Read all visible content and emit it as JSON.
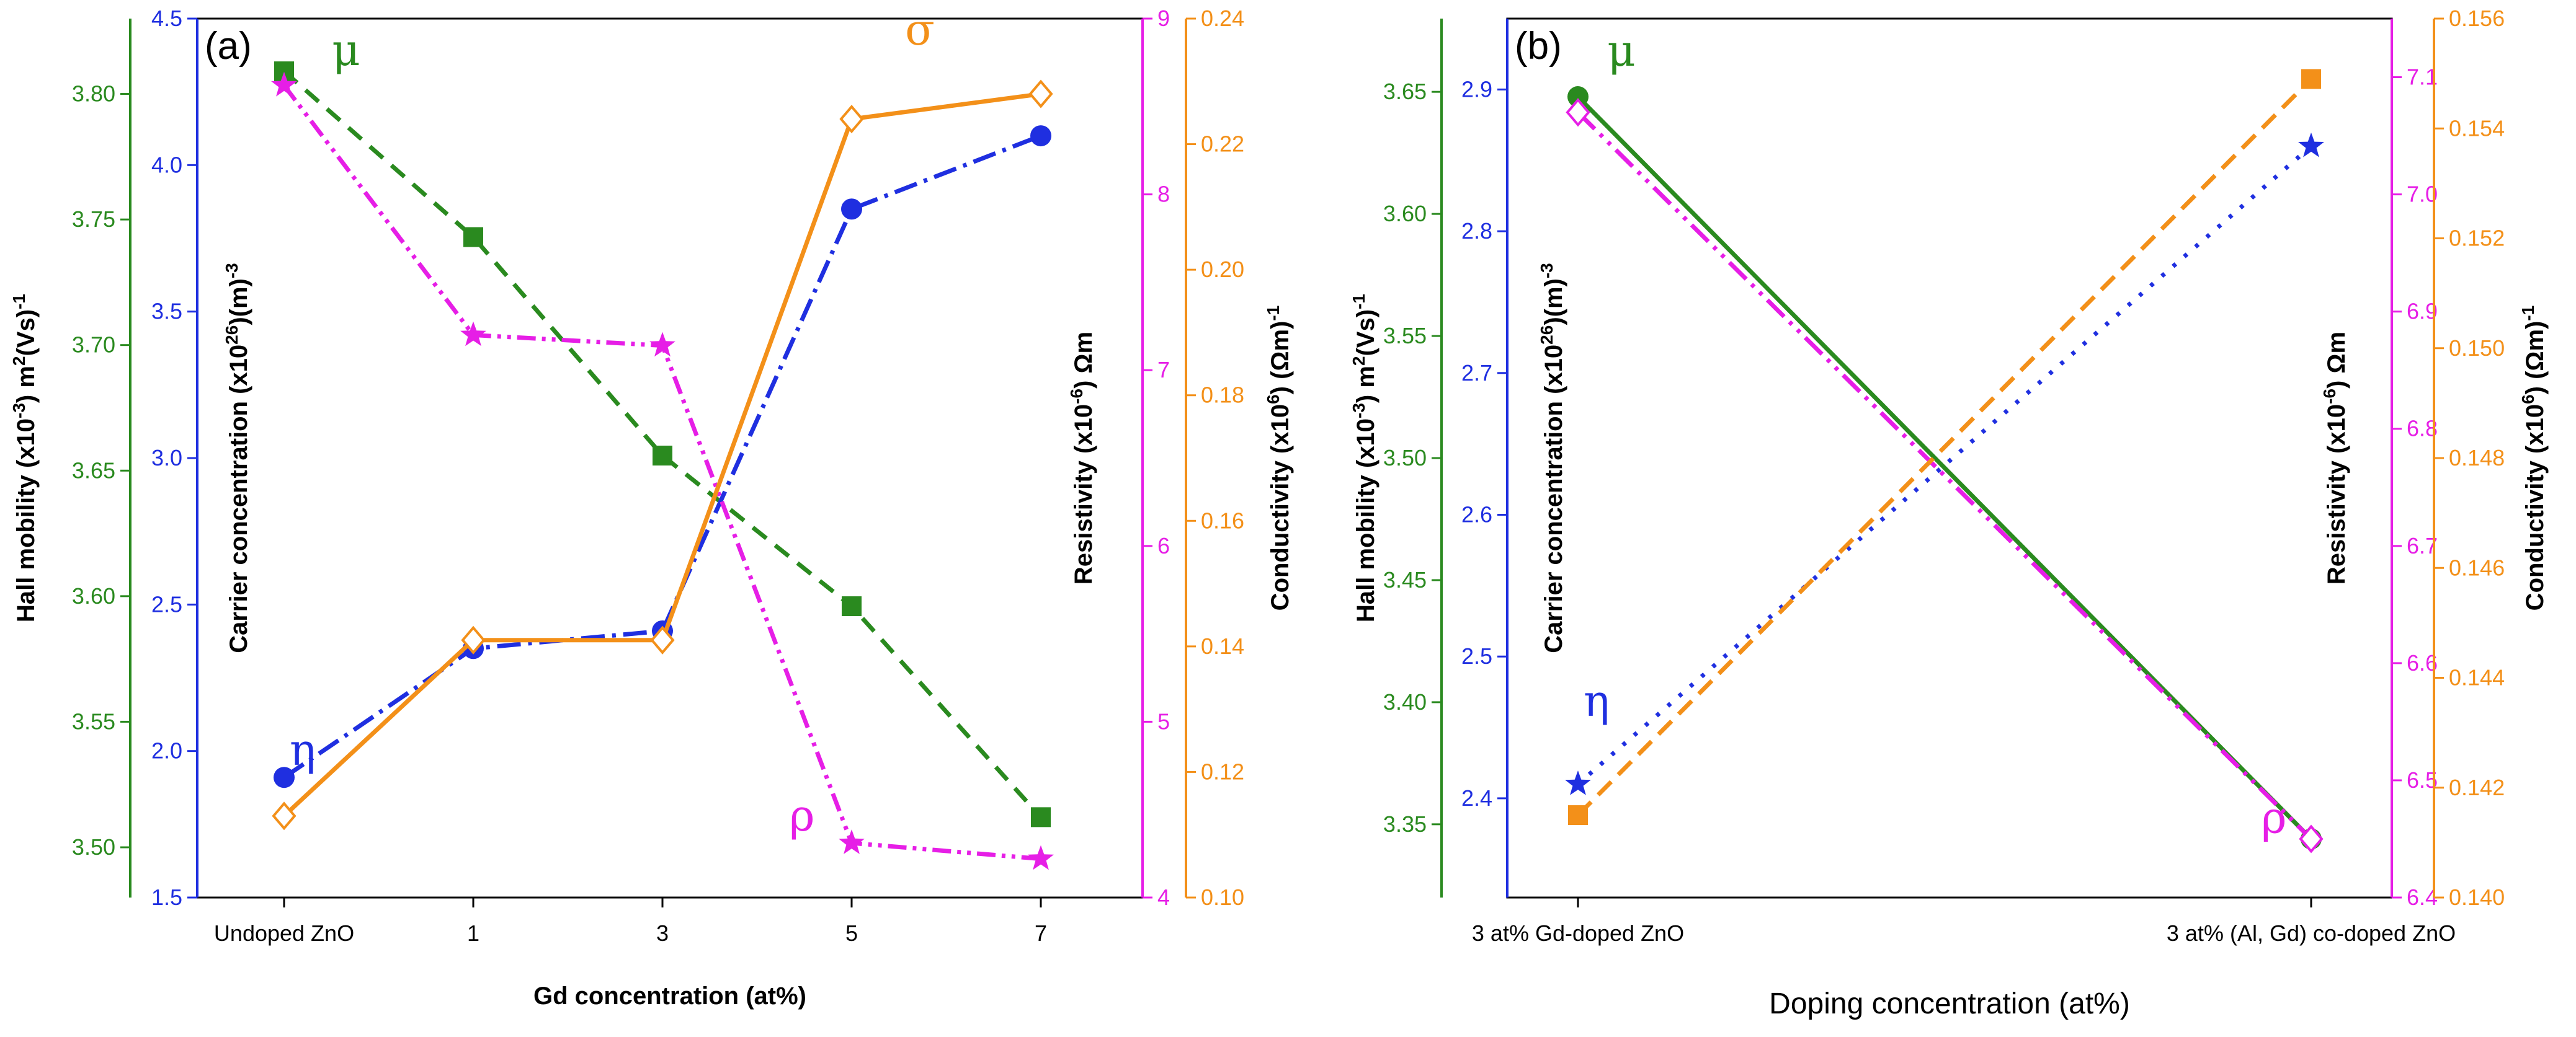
{
  "chart_data": [
    {
      "type": "line",
      "panel_label": "(a)",
      "xlabel": "Gd concentration (at%)",
      "categories": [
        "Undoped ZnO",
        "1",
        "3",
        "5",
        "7"
      ],
      "axes": {
        "mobility": {
          "label": "Hall mobility (x10^-3) m^2(Vs)^-1",
          "ticks": [
            "3.50",
            "3.55",
            "3.60",
            "3.65",
            "3.70",
            "3.75",
            "3.80"
          ],
          "range": [
            3.48,
            3.83
          ],
          "color": "#2a8a1f"
        },
        "carrier": {
          "label": "Carrier concentration (x10^26)(m)^-3",
          "ticks": [
            "1.5",
            "2.0",
            "2.5",
            "3.0",
            "3.5",
            "4.0",
            "4.5"
          ],
          "range": [
            1.5,
            4.5
          ],
          "color": "#1f2fe0"
        },
        "resistivity": {
          "label": "Resistivity (x10^-6) Ωm",
          "ticks": [
            "4",
            "5",
            "6",
            "7",
            "8",
            "9"
          ],
          "range": [
            4,
            9
          ],
          "color": "#e61ee6"
        },
        "conductivity": {
          "label": "Conductivity (x10^6) (Ωm)^-1",
          "ticks": [
            "0.10",
            "0.12",
            "0.14",
            "0.16",
            "0.18",
            "0.20",
            "0.22",
            "0.24"
          ],
          "range": [
            0.1,
            0.24
          ],
          "color": "#f39019"
        }
      },
      "series": [
        {
          "name": "μ",
          "axis": "mobility",
          "values": [
            3.809,
            3.743,
            3.656,
            3.596,
            3.512
          ],
          "color": "#2a8a1f",
          "marker": "square",
          "dash": "28,18",
          "label_point": 0
        },
        {
          "name": "η",
          "axis": "carrier",
          "values": [
            1.91,
            2.35,
            2.41,
            3.85,
            4.1
          ],
          "color": "#1f2fe0",
          "marker": "circle",
          "dash": "38,12,6,12",
          "label_point": 0
        },
        {
          "name": "ρ",
          "axis": "resistivity",
          "values": [
            8.62,
            7.2,
            7.14,
            4.31,
            4.22
          ],
          "color": "#e61ee6",
          "marker": "star",
          "dash": "30,10,6,10,6,10",
          "label_point": 3
        },
        {
          "name": "σ",
          "axis": "conductivity",
          "values": [
            0.113,
            0.141,
            0.141,
            0.224,
            0.228
          ],
          "color": "#f39019",
          "marker": "diamond",
          "dash": "",
          "label_point": 3
        }
      ]
    },
    {
      "type": "line",
      "panel_label": "(b)",
      "xlabel": "Doping concentration (at%)",
      "categories": [
        "3 at% Gd-doped ZnO",
        "3 at% (Al, Gd) co-doped ZnO"
      ],
      "axes": {
        "mobility": {
          "label": "Hall mobility (x10^-3) m^2(Vs)^-1",
          "ticks": [
            "3.35",
            "3.40",
            "3.45",
            "3.50",
            "3.55",
            "3.60",
            "3.65"
          ],
          "range": [
            3.32,
            3.68
          ],
          "color": "#2a8a1f"
        },
        "carrier": {
          "label": "Carrier concentration (x10^26)(m)^-3",
          "ticks": [
            "2.4",
            "2.5",
            "2.6",
            "2.7",
            "2.8",
            "2.9"
          ],
          "range": [
            2.33,
            2.95
          ],
          "color": "#1f2fe0"
        },
        "resistivity": {
          "label": "Resistivity (x10^-6) Ωm",
          "ticks": [
            "6.4",
            "6.5",
            "6.6",
            "6.7",
            "6.8",
            "6.9",
            "7.0",
            "7.1"
          ],
          "range": [
            6.4,
            7.15
          ],
          "color": "#e61ee6"
        },
        "conductivity": {
          "label": "Conductivity (x10^6) (Ωm)^-1",
          "ticks": [
            "0.140",
            "0.142",
            "0.144",
            "0.146",
            "0.148",
            "0.150",
            "0.152",
            "0.154",
            "0.156"
          ],
          "range": [
            0.14,
            0.156
          ],
          "color": "#f39019"
        }
      },
      "series": [
        {
          "name": "μ",
          "axis": "mobility",
          "values": [
            3.648,
            3.344
          ],
          "color": "#2a8a1f",
          "marker": "circle",
          "dash": "",
          "label_point": 0
        },
        {
          "name": "η",
          "axis": "carrier",
          "values": [
            2.41,
            2.86
          ],
          "color": "#1f2fe0",
          "marker": "star",
          "dash": "6,18",
          "label_point": 0
        },
        {
          "name": "ρ",
          "axis": "resistivity",
          "values": [
            7.07,
            6.45
          ],
          "color": "#e61ee6",
          "marker": "diamond",
          "dash": "38,12,6,12,6,12",
          "label_point": 1
        },
        {
          "name": "σ",
          "axis": "conductivity",
          "values": [
            0.1415,
            0.1549
          ],
          "color": "#f39019",
          "marker": "square",
          "dash": "30,16",
          "label_point": 1
        }
      ]
    }
  ]
}
